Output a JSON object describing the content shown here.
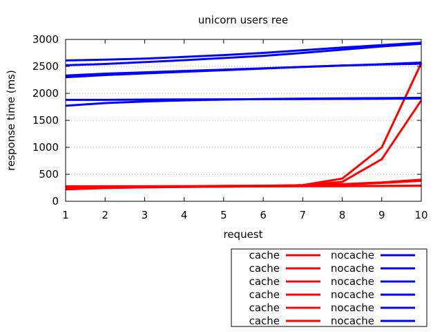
{
  "chart_data": {
    "type": "line",
    "title": "unicorn users ree",
    "xlabel": "request",
    "ylabel": "response time (ms)",
    "xlim": [
      1,
      10
    ],
    "ylim": [
      0,
      3000
    ],
    "xticks": [
      "1",
      "2",
      "3",
      "4",
      "5",
      "6",
      "7",
      "8",
      "9",
      "10"
    ],
    "yticks": [
      "0",
      "500",
      "1000",
      "1500",
      "2000",
      "2500",
      "3000"
    ],
    "grid": "horizontal dotted",
    "legend_placement": "below-right",
    "colors": {
      "cache": "#ff0000",
      "nocache": "#0000ff"
    },
    "x": [
      1,
      2,
      3,
      4,
      5,
      6,
      7,
      8,
      9,
      10
    ],
    "series": [
      {
        "name": "cache",
        "values": [
          250,
          262,
          268,
          272,
          275,
          280,
          300,
          420,
          1000,
          2560
        ]
      },
      {
        "name": "nocache",
        "values": [
          2610,
          2625,
          2645,
          2675,
          2710,
          2750,
          2800,
          2850,
          2895,
          2940
        ]
      },
      {
        "name": "cache",
        "values": [
          280,
          280,
          280,
          280,
          280,
          280,
          282,
          284,
          286,
          290
        ]
      },
      {
        "name": "nocache",
        "values": [
          2520,
          2545,
          2580,
          2615,
          2655,
          2695,
          2750,
          2810,
          2870,
          2920
        ]
      },
      {
        "name": "cache",
        "values": [
          220,
          245,
          258,
          265,
          272,
          282,
          295,
          318,
          350,
          400
        ]
      },
      {
        "name": "nocache",
        "values": [
          2330,
          2365,
          2390,
          2415,
          2440,
          2465,
          2490,
          2515,
          2535,
          2550
        ]
      },
      {
        "name": "cache",
        "values": [
          260,
          270,
          276,
          280,
          284,
          288,
          296,
          310,
          340,
          380
        ]
      },
      {
        "name": "nocache",
        "values": [
          2300,
          2340,
          2370,
          2400,
          2430,
          2460,
          2490,
          2515,
          2540,
          2570
        ]
      },
      {
        "name": "cache",
        "values": [
          230,
          250,
          260,
          266,
          272,
          280,
          296,
          360,
          780,
          1870
        ]
      },
      {
        "name": "nocache",
        "values": [
          1880,
          1880,
          1885,
          1888,
          1890,
          1892,
          1895,
          1897,
          1900,
          1905
        ]
      },
      {
        "name": "cache",
        "values": [
          265,
          268,
          270,
          272,
          274,
          276,
          278,
          280,
          282,
          285
        ]
      },
      {
        "name": "nocache",
        "values": [
          1770,
          1820,
          1850,
          1870,
          1885,
          1895,
          1902,
          1908,
          1912,
          1918
        ]
      }
    ]
  }
}
